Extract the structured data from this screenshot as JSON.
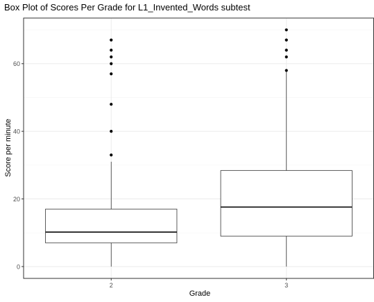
{
  "chart_data": {
    "type": "box",
    "title": "Box Plot of Scores Per Grade for L1_Invented_Words subtest",
    "xlabel": "Grade",
    "ylabel": "Score per minute",
    "ylim": [
      -3.5,
      73.5
    ],
    "y_ticks": [
      0,
      20,
      40,
      60
    ],
    "grid": true,
    "categories": [
      "2",
      "3"
    ],
    "boxes": [
      {
        "category": "2",
        "min": 0,
        "q1": 7,
        "median": 10.2,
        "q3": 17,
        "max": 31,
        "outliers": [
          33,
          40,
          48,
          57,
          60,
          62,
          64,
          67
        ]
      },
      {
        "category": "3",
        "min": 0,
        "q1": 9,
        "median": 17.6,
        "q3": 28.4,
        "max": 57.5,
        "outliers": [
          58,
          62,
          64,
          67,
          70
        ]
      }
    ],
    "colors": {
      "box_fill": "#ffffff",
      "box_stroke": "#333333",
      "grid_major": "#ebebeb",
      "grid_minor": "#f5f5f5",
      "panel_border": "#333333",
      "outlier": "#000000"
    }
  }
}
